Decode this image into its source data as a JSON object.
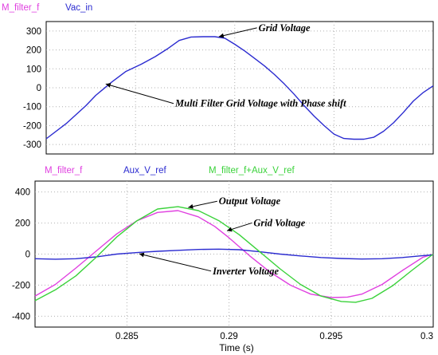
{
  "chart_data": [
    {
      "type": "line",
      "xlim": [
        0.2805,
        0.3
      ],
      "ylim": [
        -350,
        350
      ],
      "yticks": [
        300,
        200,
        100,
        0,
        -100,
        -200,
        -300
      ],
      "grid": true,
      "legend_placement": "top-left",
      "series": [
        {
          "name": "M_filter_f",
          "color": "#e040e0",
          "x": [],
          "y": []
        },
        {
          "name": "Vac_in",
          "color": "#2b2bd0",
          "x": [
            0.2805,
            0.2815,
            0.2825,
            0.283,
            0.2838,
            0.2845,
            0.2853,
            0.286,
            0.2866,
            0.2872,
            0.2878,
            0.2884,
            0.289,
            0.2895,
            0.29,
            0.2905,
            0.291,
            0.2915,
            0.292,
            0.2925,
            0.293,
            0.2935,
            0.294,
            0.2945,
            0.295,
            0.2955,
            0.296,
            0.2965,
            0.297,
            0.2975,
            0.298,
            0.2985,
            0.299,
            0.2995,
            0.3
          ],
          "y": [
            -270,
            -190,
            -95,
            -40,
            30,
            85,
            125,
            165,
            205,
            250,
            268,
            270,
            270,
            262,
            230,
            195,
            155,
            115,
            70,
            20,
            -35,
            -95,
            -150,
            -200,
            -245,
            -268,
            -272,
            -272,
            -262,
            -230,
            -185,
            -130,
            -70,
            -25,
            10
          ]
        }
      ],
      "annotations": [
        {
          "text": "Grid Voltage",
          "x": 0.2892,
          "y": 270,
          "label_x": 0.2912,
          "label_y": 300
        },
        {
          "text": "Multi Filter Grid Voltage with Phase shift",
          "x": 0.2835,
          "y": 20,
          "label_x": 0.287,
          "label_y": -100
        }
      ]
    },
    {
      "type": "line",
      "xlim": [
        0.2805,
        0.3
      ],
      "ylim": [
        -470,
        470
      ],
      "xticks": [
        0.285,
        0.29,
        0.295,
        0.3
      ],
      "xtick_labels": [
        "0.285",
        "0.29",
        "0.295",
        "0.3"
      ],
      "yticks": [
        400,
        200,
        0,
        -200,
        -400
      ],
      "xlabel": "Time (s)",
      "grid": true,
      "legend_placement": "top",
      "series": [
        {
          "name": "M_filter_f",
          "color": "#e040e0",
          "x": [
            0.2805,
            0.2815,
            0.2825,
            0.2835,
            0.2845,
            0.2855,
            0.2865,
            0.2875,
            0.2885,
            0.2893,
            0.29,
            0.291,
            0.292,
            0.293,
            0.294,
            0.295,
            0.2958,
            0.2965,
            0.2975,
            0.2985,
            0.2995,
            0.3
          ],
          "y": [
            -270,
            -195,
            -90,
            20,
            130,
            215,
            268,
            280,
            240,
            178,
            105,
            -10,
            -115,
            -200,
            -258,
            -280,
            -277,
            -258,
            -195,
            -105,
            -20,
            0
          ]
        },
        {
          "name": "Aux_V_ref",
          "color": "#2b2bd0",
          "x": [
            0.2805,
            0.2815,
            0.2825,
            0.2835,
            0.2845,
            0.2855,
            0.2865,
            0.2875,
            0.2885,
            0.2895,
            0.2905,
            0.2915,
            0.2925,
            0.2935,
            0.2945,
            0.2955,
            0.2965,
            0.2975,
            0.2985,
            0.2995,
            0.3
          ],
          "y": [
            -30,
            -33,
            -30,
            -18,
            0,
            10,
            18,
            24,
            30,
            32,
            28,
            15,
            0,
            -12,
            -22,
            -28,
            -32,
            -30,
            -22,
            -10,
            -5
          ]
        },
        {
          "name": "M_filter_f+Aux_V_ref",
          "color": "#3ad23a",
          "x": [
            0.2805,
            0.2815,
            0.2825,
            0.2835,
            0.2845,
            0.2855,
            0.2865,
            0.2875,
            0.2885,
            0.2895,
            0.2905,
            0.2915,
            0.2925,
            0.2935,
            0.2945,
            0.2955,
            0.2962,
            0.297,
            0.298,
            0.299,
            0.3
          ],
          "y": [
            -300,
            -230,
            -140,
            -20,
            110,
            215,
            290,
            305,
            280,
            215,
            125,
            15,
            -95,
            -195,
            -270,
            -305,
            -310,
            -285,
            -205,
            -100,
            0
          ]
        }
      ],
      "annotations": [
        {
          "text": "Output Voltage",
          "x": 0.288,
          "y": 300,
          "label_x": 0.2895,
          "label_y": 320
        },
        {
          "text": "Grid Voltage",
          "x": 0.2899,
          "y": 150,
          "label_x": 0.2912,
          "label_y": 180
        },
        {
          "text": "Inverter Voltage",
          "x": 0.2856,
          "y": 2,
          "label_x": 0.2892,
          "label_y": -130
        }
      ]
    }
  ]
}
